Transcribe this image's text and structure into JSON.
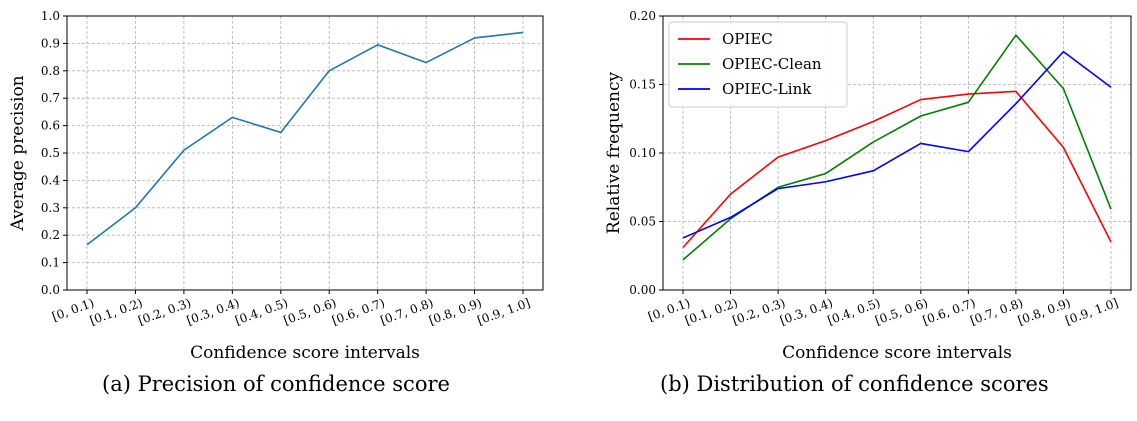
{
  "chart_data": [
    {
      "type": "line",
      "xlabel": "Confidence score intervals",
      "ylabel": "Average precision",
      "categories": [
        "[0, 0.1)",
        "[0.1, 0.2)",
        "[0.2, 0.3)",
        "[0.3, 0.4)",
        "[0.4, 0.5)",
        "[0.5, 0.6)",
        "[0.6, 0.7)",
        "[0.7, 0.8)",
        "[0.8, 0.9)",
        "[0.9, 1.0]"
      ],
      "ylim": [
        0,
        1.0
      ],
      "yticks": [
        "0.0",
        "0.1",
        "0.2",
        "0.3",
        "0.4",
        "0.5",
        "0.6",
        "0.7",
        "0.8",
        "0.9",
        "1.0"
      ],
      "grid": true,
      "series": [
        {
          "color": "#1f77b4",
          "values": [
            0.165,
            0.3,
            0.51,
            0.63,
            0.575,
            0.8,
            0.895,
            0.83,
            0.92,
            0.94
          ]
        }
      ]
    },
    {
      "type": "line",
      "xlabel": "Confidence score intervals",
      "ylabel": "Relative frequency",
      "categories": [
        "[0, 0.1)",
        "[0.1, 0.2)",
        "[0.2, 0.3)",
        "[0.3, 0.4)",
        "[0.4, 0.5)",
        "[0.5, 0.6)",
        "[0.6, 0.7)",
        "[0.7, 0.8)",
        "[0.8, 0.9)",
        "[0.9, 1.0]"
      ],
      "ylim": [
        0,
        0.2
      ],
      "yticks": [
        "0.00",
        "0.05",
        "0.10",
        "0.15",
        "0.20"
      ],
      "grid": true,
      "legend": "top-left",
      "series": [
        {
          "name": "OPIEC",
          "color": "#ff0000",
          "values": [
            0.031,
            0.07,
            0.097,
            0.109,
            0.123,
            0.139,
            0.143,
            0.145,
            0.104,
            0.035
          ]
        },
        {
          "name": "OPIEC-Clean",
          "color": "#008000",
          "values": [
            0.022,
            0.052,
            0.075,
            0.085,
            0.108,
            0.127,
            0.137,
            0.186,
            0.147,
            0.059
          ]
        },
        {
          "name": "OPIEC-Link",
          "color": "#0000ff",
          "values": [
            0.038,
            0.053,
            0.074,
            0.079,
            0.087,
            0.107,
            0.101,
            0.136,
            0.174,
            0.148
          ]
        }
      ]
    }
  ],
  "captions": {
    "a": "(a) Precision of confidence score",
    "b": "(b) Distribution of confidence scores"
  }
}
